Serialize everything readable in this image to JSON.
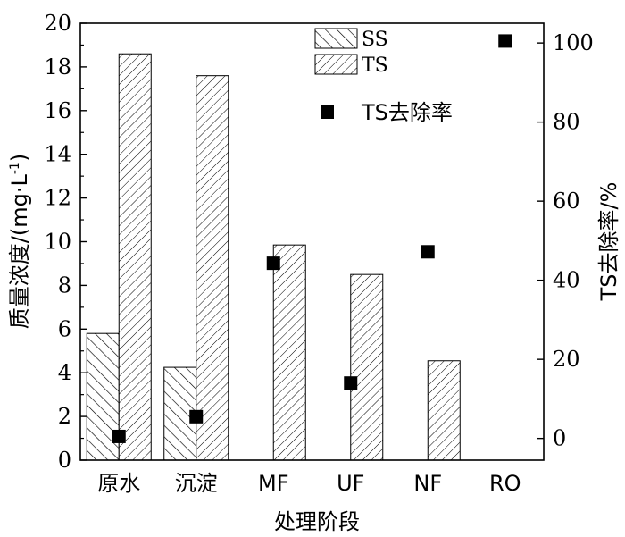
{
  "chart_data": {
    "type": "bar",
    "categories": [
      "原水",
      "沉淀",
      "MF",
      "UF",
      "NF",
      "RO"
    ],
    "xlabel": "处理阶段",
    "ylabel_left": "质量浓度/(mg·L",
    "ylabel_left_sup": "-1",
    "ylabel_left_close": ")",
    "ylabel_right": "TS去除率/%",
    "ylim_left": [
      0,
      20
    ],
    "ylim_right": [
      -5.5,
      105
    ],
    "yticks_left": [
      0,
      2,
      4,
      6,
      8,
      10,
      12,
      14,
      16,
      18,
      20
    ],
    "yticks_right": [
      0,
      20,
      40,
      60,
      80,
      100
    ],
    "series": [
      {
        "name": "SS",
        "kind": "bar",
        "hatch": "backslash",
        "values": [
          5.8,
          4.25,
          null,
          null,
          null,
          null
        ]
      },
      {
        "name": "TS",
        "kind": "bar",
        "hatch": "slash",
        "values": [
          18.6,
          17.6,
          9.85,
          8.5,
          4.55,
          null
        ]
      },
      {
        "name": "TS去除率",
        "kind": "scatter",
        "axis": "right",
        "values": [
          0.5,
          5.5,
          44.3,
          14.0,
          47.2,
          100.5
        ]
      }
    ],
    "legend_position": "top-center",
    "grid": false
  }
}
